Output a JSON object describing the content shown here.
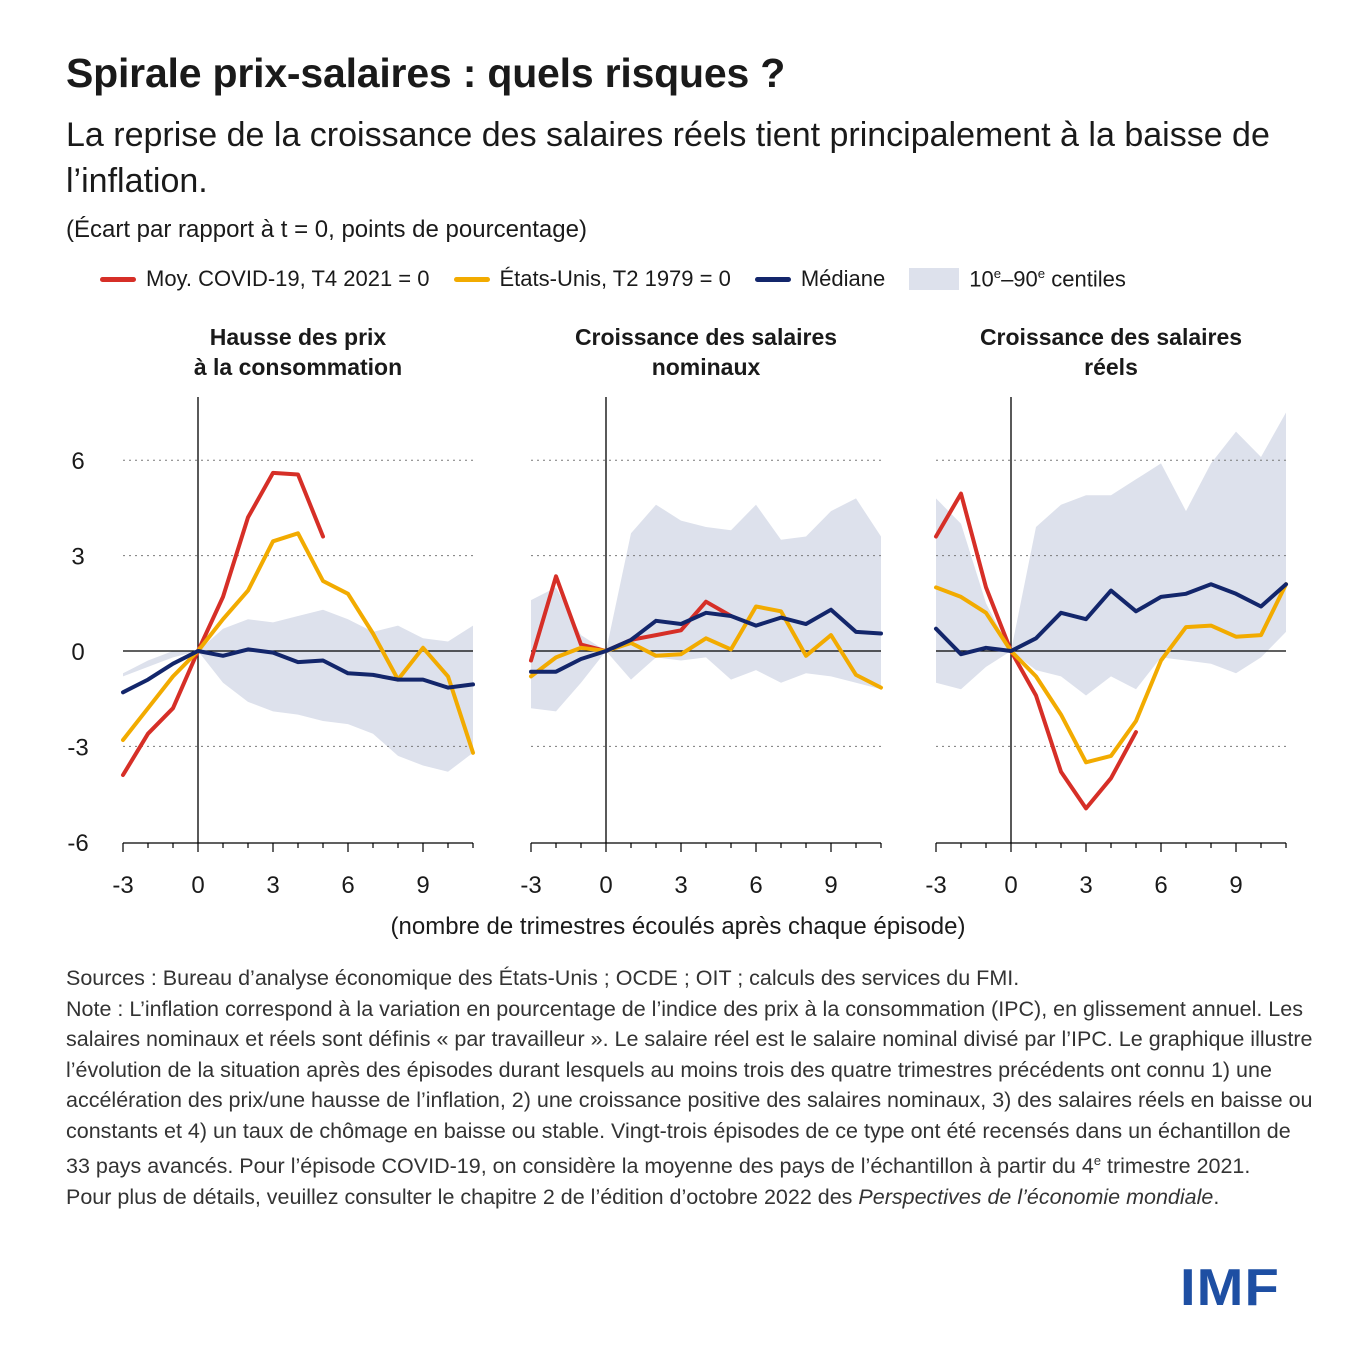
{
  "title": "Spirale prix-salaires : quels risques ?",
  "subtitle": "La reprise de la croissance des salaires réels tient principalement à la baisse de l’inflation.",
  "units": "(Écart par rapport à t = 0, points de pourcentage)",
  "legend": {
    "covid": "Moy. COVID-19, T4 2021 = 0",
    "us": "États-Unis, T2 1979 = 0",
    "median": "Médiane",
    "band_prefix": "10",
    "band_sup1": "e",
    "band_mid": "–90",
    "band_sup2": "e",
    "band_suffix": " centiles"
  },
  "colors": {
    "covid": "#d62f27",
    "us": "#f2ab00",
    "median": "#13266b",
    "band": "#dde1ec",
    "axis": "#000000",
    "logo": "#1e4fa3"
  },
  "x_axis_label": "(nombre de trimestres écoulés après chaque épisode)",
  "chart_data": [
    {
      "type": "line",
      "title_line1": "Hausse des prix",
      "title_line2": "à la consommation",
      "x": [
        -3,
        -2,
        -1,
        0,
        1,
        2,
        3,
        4,
        5,
        6,
        7,
        8,
        9,
        10,
        11
      ],
      "xticks": [
        "-3",
        "0",
        "3",
        "6",
        "9"
      ],
      "yticks": [
        "6",
        "3",
        "0",
        "-3",
        "-6"
      ],
      "ylim": [
        -6,
        8
      ],
      "series": [
        {
          "name": "Moy. COVID-19, T4 2021 = 0",
          "key": "covid",
          "values": [
            -3.9,
            -2.6,
            -1.8,
            0,
            1.7,
            4.2,
            5.6,
            5.55,
            3.6,
            null,
            null,
            null,
            null,
            null,
            null
          ]
        },
        {
          "name": "États-Unis, T2 1979 = 0",
          "key": "us",
          "values": [
            -2.8,
            -1.8,
            -0.8,
            0,
            1.0,
            1.9,
            3.45,
            3.7,
            2.2,
            1.8,
            0.55,
            -0.9,
            0.1,
            -0.8,
            -3.2
          ]
        },
        {
          "name": "Médiane",
          "key": "median",
          "values": [
            -1.3,
            -0.9,
            -0.4,
            0,
            -0.15,
            0.05,
            -0.05,
            -0.35,
            -0.3,
            -0.7,
            -0.75,
            -0.9,
            -0.9,
            -1.15,
            -1.05
          ]
        }
      ],
      "band": {
        "name": "10e–90e centiles",
        "lower": [
          -0.8,
          -0.5,
          -0.2,
          0,
          -1.0,
          -1.6,
          -1.9,
          -2.0,
          -2.2,
          -2.3,
          -2.6,
          -3.3,
          -3.6,
          -3.8,
          -3.2
        ],
        "upper": [
          -0.7,
          -0.3,
          0.0,
          0,
          0.7,
          1.0,
          0.9,
          1.1,
          1.3,
          1.0,
          0.6,
          0.8,
          0.4,
          0.3,
          0.8
        ]
      }
    },
    {
      "type": "line",
      "title_line1": "Croissance des salaires",
      "title_line2": "nominaux",
      "x": [
        -3,
        -2,
        -1,
        0,
        1,
        2,
        3,
        4,
        5,
        6,
        7,
        8,
        9,
        10,
        11
      ],
      "xticks": [
        "-3",
        "0",
        "3",
        "6",
        "9"
      ],
      "yticks": [],
      "ylim": [
        -6,
        8
      ],
      "series": [
        {
          "name": "Moy. COVID-19, T4 2021 = 0",
          "key": "covid",
          "values": [
            -0.3,
            2.35,
            0.2,
            0,
            0.35,
            0.5,
            0.65,
            1.55,
            1.1,
            null,
            null,
            null,
            null,
            null,
            null
          ]
        },
        {
          "name": "États-Unis, T2 1979 = 0",
          "key": "us",
          "values": [
            -0.8,
            -0.2,
            0.1,
            0,
            0.25,
            -0.15,
            -0.1,
            0.4,
            0.05,
            1.4,
            1.25,
            -0.15,
            0.5,
            -0.75,
            -1.15
          ]
        },
        {
          "name": "Médiane",
          "key": "median",
          "values": [
            -0.65,
            -0.65,
            -0.25,
            0,
            0.35,
            0.95,
            0.85,
            1.2,
            1.1,
            0.8,
            1.05,
            0.85,
            1.3,
            0.6,
            0.55
          ]
        }
      ],
      "band": {
        "name": "10e–90e centiles",
        "lower": [
          -1.8,
          -1.9,
          -1.0,
          0,
          -0.9,
          -0.2,
          -0.3,
          -0.2,
          -0.9,
          -0.6,
          -1.0,
          -0.7,
          -0.8,
          -1.0,
          -1.2
        ],
        "upper": [
          1.6,
          2.0,
          0.5,
          0,
          3.7,
          4.6,
          4.1,
          3.9,
          3.8,
          4.6,
          3.5,
          3.6,
          4.4,
          4.8,
          3.6
        ]
      }
    },
    {
      "type": "line",
      "title_line1": "Croissance des salaires",
      "title_line2": "réels",
      "x": [
        -3,
        -2,
        -1,
        0,
        1,
        2,
        3,
        4,
        5,
        6,
        7,
        8,
        9,
        10,
        11
      ],
      "xticks": [
        "-3",
        "0",
        "3",
        "6",
        "9"
      ],
      "yticks": [],
      "ylim": [
        -6,
        8
      ],
      "series": [
        {
          "name": "Moy. COVID-19, T4 2021 = 0",
          "key": "covid",
          "values": [
            3.6,
            4.95,
            2.0,
            0,
            -1.4,
            -3.8,
            -4.95,
            -4.0,
            -2.55,
            null,
            null,
            null,
            null,
            null,
            null
          ]
        },
        {
          "name": "États-Unis, T2 1979 = 0",
          "key": "us",
          "values": [
            2.0,
            1.7,
            1.2,
            0,
            -0.8,
            -2.0,
            -3.5,
            -3.3,
            -2.2,
            -0.3,
            0.75,
            0.8,
            0.45,
            0.5,
            2.1
          ]
        },
        {
          "name": "Médiane",
          "key": "median",
          "values": [
            0.7,
            -0.1,
            0.1,
            0,
            0.4,
            1.2,
            1.0,
            1.9,
            1.25,
            1.7,
            1.8,
            2.1,
            1.8,
            1.4,
            2.1
          ]
        }
      ],
      "band": {
        "name": "10e–90e centiles",
        "lower": [
          -1.0,
          -1.2,
          -0.5,
          0,
          -0.6,
          -0.8,
          -1.4,
          -0.8,
          -1.2,
          -0.2,
          -0.3,
          -0.4,
          -0.7,
          -0.2,
          0.6
        ]
      },
      "band_upper_note": "",
      "band_upper": [
        4.8,
        4.0,
        1.5,
        0,
        3.9,
        4.6,
        4.9,
        4.9,
        5.4,
        5.9,
        4.4,
        5.9,
        6.9,
        6.1,
        7.5
      ]
    }
  ],
  "notes": {
    "sources": "Sources : Bureau d’analyse économique des États-Unis ; OCDE ; OIT ; calculs des services du FMI.",
    "note_a": "Note : L’inflation correspond à la variation en pourcentage de l’indice des prix à la consommation (IPC), en glissement annuel. Les salaires nominaux et réels sont définis « par travailleur ». Le salaire réel est le salaire nominal divisé par l’IPC. Le graphique illustre l’évolution de la situation après des épisodes durant lesquels au moins trois des quatre trimestres précédents ont connu 1) une accélération des prix/une hausse de l’inflation, 2) une croissance positive des salaires nominaux, 3) des salaires réels en baisse ou constants et 4) un taux de chômage en baisse ou stable. Vingt-trois épisodes de ce type ont été recensés dans un échantillon de 33 pays avancés. Pour l’épisode COVID-19, on considère la moyenne des pays de l’échantillon à partir du 4",
    "note_sup": "e",
    "note_b": " trimestre 2021.",
    "details_a": "Pour plus de détails, veuillez consulter le chapitre 2 de l’édition d’octobre 2022 des ",
    "details_italic": "Perspectives de l’économie mondiale",
    "details_b": "."
  },
  "logo": "IMF"
}
